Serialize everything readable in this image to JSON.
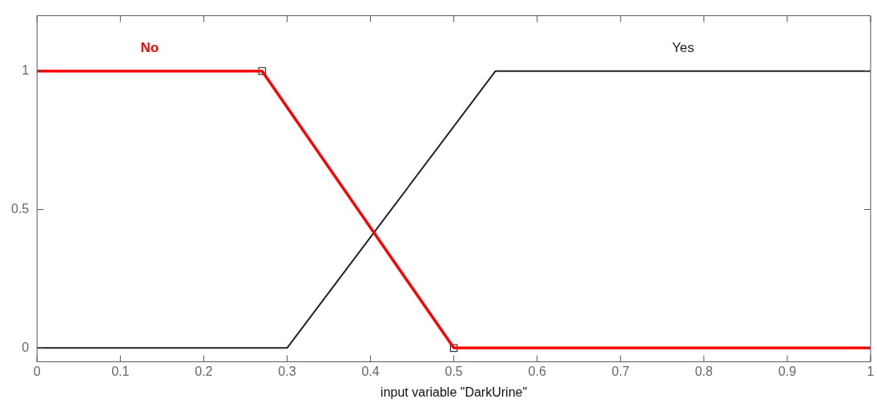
{
  "chart_data": {
    "type": "line",
    "xlabel": "input variable \"DarkUrine\"",
    "xlim": [
      0,
      1
    ],
    "xticks": [
      0,
      0.1,
      0.2,
      0.3,
      0.4,
      0.5,
      0.6,
      0.7,
      0.8,
      0.9,
      1
    ],
    "ylim": [
      -0.05,
      1.2
    ],
    "yticks": [
      0,
      0.5,
      1
    ],
    "grid": false,
    "legend": false,
    "marker": "none",
    "line_style": "solid",
    "series": [
      {
        "name": "No",
        "color": "#ff0000",
        "x": [
          0,
          0.27,
          0.5,
          1
        ],
        "values": [
          1,
          1,
          0,
          0
        ]
      },
      {
        "name": "Yes",
        "color": "#222222",
        "x": [
          0,
          0.3,
          0.55,
          1
        ],
        "values": [
          0,
          0,
          1,
          1
        ]
      },
      {
        "type": "scatter",
        "marker": "square",
        "color": "#333333",
        "x": [
          0.27,
          0.5
        ],
        "values": [
          1,
          0
        ]
      }
    ]
  }
}
